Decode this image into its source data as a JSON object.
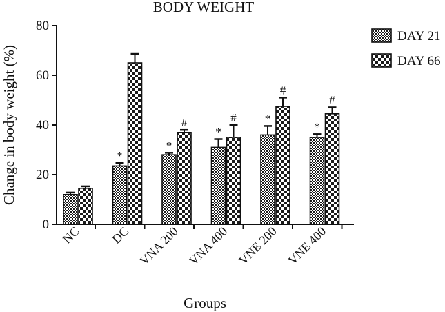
{
  "chart_data": {
    "type": "bar",
    "title": "BODY WEIGHT",
    "xlabel": "Groups",
    "ylabel": "Change in body weight (%)",
    "ylim": [
      0,
      80
    ],
    "yticks": [
      "0",
      "20",
      "40",
      "60",
      "80"
    ],
    "categories": [
      "NC",
      "DC",
      "VNA 200",
      "VNA 400",
      "VNE 200",
      "VNE 400"
    ],
    "series": [
      {
        "name": "DAY 21",
        "pattern": "small-checker",
        "values": [
          12,
          23.5,
          28,
          31,
          36,
          35
        ],
        "errors": [
          0.8,
          1.2,
          0.8,
          3.3,
          3.6,
          1.3
        ],
        "marks": [
          "",
          "*",
          "*",
          "*",
          "*",
          "*"
        ]
      },
      {
        "name": "DAY 66",
        "pattern": "large-checker",
        "values": [
          14.5,
          65,
          37,
          35,
          47.5,
          44.5
        ],
        "errors": [
          0.8,
          3.6,
          1.0,
          5.0,
          3.5,
          2.6
        ],
        "marks": [
          "",
          "",
          "#",
          "#",
          "#",
          "#"
        ]
      }
    ],
    "grid": false,
    "legend": "top-right",
    "colors": {
      "ink": "#111111",
      "background": "#ffffff"
    }
  }
}
